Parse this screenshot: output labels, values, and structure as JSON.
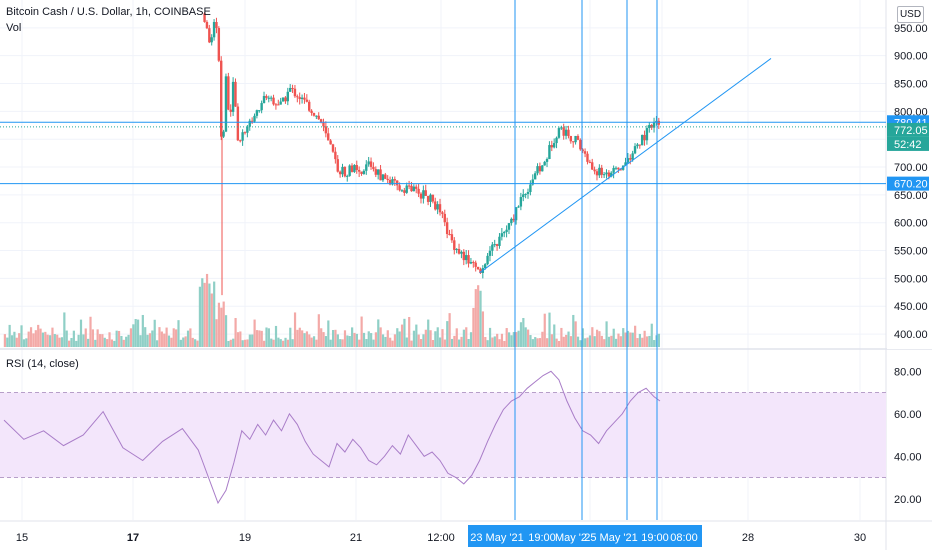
{
  "header": {
    "symbol_title": "Bitcoin Cash / U.S. Dollar, 1h, COINBASE",
    "volume_label": "Vol",
    "rsi_label": "RSI (14, close)",
    "currency_label": "USD"
  },
  "colors": {
    "up": "#26a69a",
    "down": "#ef5350",
    "line_blue": "#2196f3",
    "rsi_line": "#a97dc8",
    "rsi_band": "#f3e6fb",
    "grid": "#f0f3fa"
  },
  "price_scale": {
    "ticks": [
      "950.00",
      "900.00",
      "850.00",
      "800.00",
      "700.00",
      "650.00",
      "600.00",
      "550.00",
      "500.00",
      "450.00",
      "400.00"
    ],
    "badges": [
      {
        "text": "780.41",
        "kind": "line"
      },
      {
        "text": "772.05",
        "kind": "last"
      },
      {
        "text": "52:42",
        "kind": "countdown"
      },
      {
        "text": "670.20",
        "kind": "line"
      }
    ]
  },
  "rsi_scale": {
    "ticks": [
      "80.00",
      "60.00",
      "40.00",
      "20.00"
    ]
  },
  "time_axis": {
    "labels": [
      "15",
      "17",
      "19",
      "21",
      "12:00",
      "23",
      "25",
      "28",
      "30"
    ],
    "bold_labels": [
      "17"
    ],
    "highlight_labels": [
      "23 May '21",
      "19:00",
      "May '2",
      "25 May '21",
      "19:00",
      "08:00"
    ]
  },
  "chart_data": {
    "type": "candlestick",
    "title": "Bitcoin Cash / U.S. Dollar, 1h, COINBASE",
    "ylabel": "USD",
    "ylim": [
      375,
      1000
    ],
    "horizontal_levels": [
      780.41,
      670.2
    ],
    "last_price": 772.05,
    "trendlines": [
      {
        "start": {
          "time": "23 May '21 ~01:00",
          "price": 510
        },
        "end": {
          "time": "~27 May '21",
          "price": 895
        }
      }
    ],
    "vertical_markers": [
      "23 May '21 ~12:00",
      "24 May '21 ~19:00",
      "25 May '21 ~19:00",
      "26 May '21 ~01:00"
    ],
    "price_path": [
      {
        "t": 0,
        "p": null
      },
      {
        "t": 0.5,
        "p": null
      },
      {
        "t": 1,
        "p": null
      },
      {
        "t": 1.5,
        "p": null
      },
      {
        "t": 2,
        "p": null
      },
      {
        "t": 2.5,
        "p": null
      },
      {
        "t": 3,
        "p": null
      },
      {
        "t": 3.5,
        "p": null
      },
      {
        "t": 4,
        "p": null
      },
      {
        "t": 4.5,
        "p": null
      },
      {
        "t": 4.95,
        "p": null
      },
      {
        "t": 5,
        "p": 980
      },
      {
        "t": 5.1,
        "p": 960
      },
      {
        "t": 5.2,
        "p": 920
      },
      {
        "t": 5.3,
        "p": 960
      },
      {
        "t": 5.4,
        "p": 930
      },
      {
        "t": 5.5,
        "p": 700
      },
      {
        "t": 5.6,
        "p": 860
      },
      {
        "t": 5.7,
        "p": 780
      },
      {
        "t": 5.8,
        "p": 860
      },
      {
        "t": 5.9,
        "p": 740
      },
      {
        "t": 6,
        "p": 760
      },
      {
        "t": 6.2,
        "p": 780
      },
      {
        "t": 6.4,
        "p": 800
      },
      {
        "t": 6.6,
        "p": 830
      },
      {
        "t": 6.8,
        "p": 820
      },
      {
        "t": 7,
        "p": 810
      },
      {
        "t": 7.2,
        "p": 840
      },
      {
        "t": 7.4,
        "p": 830
      },
      {
        "t": 7.6,
        "p": 815
      },
      {
        "t": 7.8,
        "p": 800
      },
      {
        "t": 8,
        "p": 780
      },
      {
        "t": 8.2,
        "p": 740
      },
      {
        "t": 8.4,
        "p": 700
      },
      {
        "t": 8.6,
        "p": 690
      },
      {
        "t": 8.8,
        "p": 700
      },
      {
        "t": 9,
        "p": 680
      },
      {
        "t": 9.2,
        "p": 710
      },
      {
        "t": 9.4,
        "p": 690
      },
      {
        "t": 9.6,
        "p": 680
      },
      {
        "t": 9.8,
        "p": 670
      },
      {
        "t": 10,
        "p": 660
      },
      {
        "t": 10.2,
        "p": 665
      },
      {
        "t": 10.4,
        "p": 655
      },
      {
        "t": 10.6,
        "p": 650
      },
      {
        "t": 10.8,
        "p": 640
      },
      {
        "t": 11,
        "p": 620
      },
      {
        "t": 11.2,
        "p": 580
      },
      {
        "t": 11.4,
        "p": 555
      },
      {
        "t": 11.6,
        "p": 540
      },
      {
        "t": 11.8,
        "p": 525
      },
      {
        "t": 12,
        "p": 515
      },
      {
        "t": 12.2,
        "p": 540
      },
      {
        "t": 12.4,
        "p": 560
      },
      {
        "t": 12.6,
        "p": 580
      },
      {
        "t": 12.8,
        "p": 600
      },
      {
        "t": 13,
        "p": 640
      },
      {
        "t": 13.2,
        "p": 660
      },
      {
        "t": 13.4,
        "p": 690
      },
      {
        "t": 13.6,
        "p": 700
      },
      {
        "t": 13.8,
        "p": 740
      },
      {
        "t": 14,
        "p": 770
      },
      {
        "t": 14.2,
        "p": 760
      },
      {
        "t": 14.4,
        "p": 750
      },
      {
        "t": 14.6,
        "p": 730
      },
      {
        "t": 14.8,
        "p": 700
      },
      {
        "t": 15,
        "p": 690
      },
      {
        "t": 15.2,
        "p": 690
      },
      {
        "t": 15.4,
        "p": 690
      },
      {
        "t": 15.6,
        "p": 700
      },
      {
        "t": 15.8,
        "p": 720
      },
      {
        "t": 16,
        "p": 740
      },
      {
        "t": 16.2,
        "p": 760
      },
      {
        "t": 16.4,
        "p": 778
      },
      {
        "t": 16.55,
        "p": 772
      }
    ],
    "volume_scale_hint": [
      1,
      2,
      3,
      4,
      5
    ],
    "rsi": {
      "name": "RSI (14, close)",
      "ylim": [
        10,
        90
      ],
      "band": [
        30,
        70
      ],
      "points": [
        {
          "t": 0,
          "v": 57
        },
        {
          "t": 0.5,
          "v": 48
        },
        {
          "t": 1,
          "v": 52
        },
        {
          "t": 1.5,
          "v": 45
        },
        {
          "t": 2,
          "v": 50
        },
        {
          "t": 2.5,
          "v": 61
        },
        {
          "t": 3,
          "v": 44
        },
        {
          "t": 3.5,
          "v": 38
        },
        {
          "t": 4,
          "v": 47
        },
        {
          "t": 4.5,
          "v": 53
        },
        {
          "t": 4.9,
          "v": 43
        },
        {
          "t": 5,
          "v": 38
        },
        {
          "t": 5.2,
          "v": 28
        },
        {
          "t": 5.4,
          "v": 18
        },
        {
          "t": 5.6,
          "v": 24
        },
        {
          "t": 5.8,
          "v": 37
        },
        {
          "t": 6,
          "v": 52
        },
        {
          "t": 6.2,
          "v": 48
        },
        {
          "t": 6.4,
          "v": 55
        },
        {
          "t": 6.6,
          "v": 50
        },
        {
          "t": 6.8,
          "v": 57
        },
        {
          "t": 7,
          "v": 52
        },
        {
          "t": 7.2,
          "v": 60
        },
        {
          "t": 7.4,
          "v": 55
        },
        {
          "t": 7.6,
          "v": 47
        },
        {
          "t": 7.8,
          "v": 41
        },
        {
          "t": 8,
          "v": 38
        },
        {
          "t": 8.2,
          "v": 35
        },
        {
          "t": 8.4,
          "v": 46
        },
        {
          "t": 8.6,
          "v": 42
        },
        {
          "t": 8.8,
          "v": 48
        },
        {
          "t": 9,
          "v": 44
        },
        {
          "t": 9.2,
          "v": 38
        },
        {
          "t": 9.4,
          "v": 36
        },
        {
          "t": 9.6,
          "v": 40
        },
        {
          "t": 9.8,
          "v": 45
        },
        {
          "t": 10,
          "v": 41
        },
        {
          "t": 10.2,
          "v": 50
        },
        {
          "t": 10.4,
          "v": 45
        },
        {
          "t": 10.6,
          "v": 40
        },
        {
          "t": 10.8,
          "v": 42
        },
        {
          "t": 11,
          "v": 38
        },
        {
          "t": 11.2,
          "v": 32
        },
        {
          "t": 11.4,
          "v": 30
        },
        {
          "t": 11.6,
          "v": 27
        },
        {
          "t": 11.8,
          "v": 31
        },
        {
          "t": 12,
          "v": 38
        },
        {
          "t": 12.2,
          "v": 47
        },
        {
          "t": 12.4,
          "v": 55
        },
        {
          "t": 12.6,
          "v": 62
        },
        {
          "t": 12.8,
          "v": 66
        },
        {
          "t": 13,
          "v": 68
        },
        {
          "t": 13.2,
          "v": 72
        },
        {
          "t": 13.4,
          "v": 75
        },
        {
          "t": 13.6,
          "v": 78
        },
        {
          "t": 13.8,
          "v": 80
        },
        {
          "t": 14,
          "v": 76
        },
        {
          "t": 14.2,
          "v": 66
        },
        {
          "t": 14.4,
          "v": 58
        },
        {
          "t": 14.6,
          "v": 52
        },
        {
          "t": 14.8,
          "v": 50
        },
        {
          "t": 15,
          "v": 46
        },
        {
          "t": 15.2,
          "v": 52
        },
        {
          "t": 15.4,
          "v": 56
        },
        {
          "t": 15.6,
          "v": 60
        },
        {
          "t": 15.8,
          "v": 66
        },
        {
          "t": 16,
          "v": 70
        },
        {
          "t": 16.2,
          "v": 72
        },
        {
          "t": 16.4,
          "v": 68
        },
        {
          "t": 16.55,
          "v": 66
        }
      ]
    }
  }
}
